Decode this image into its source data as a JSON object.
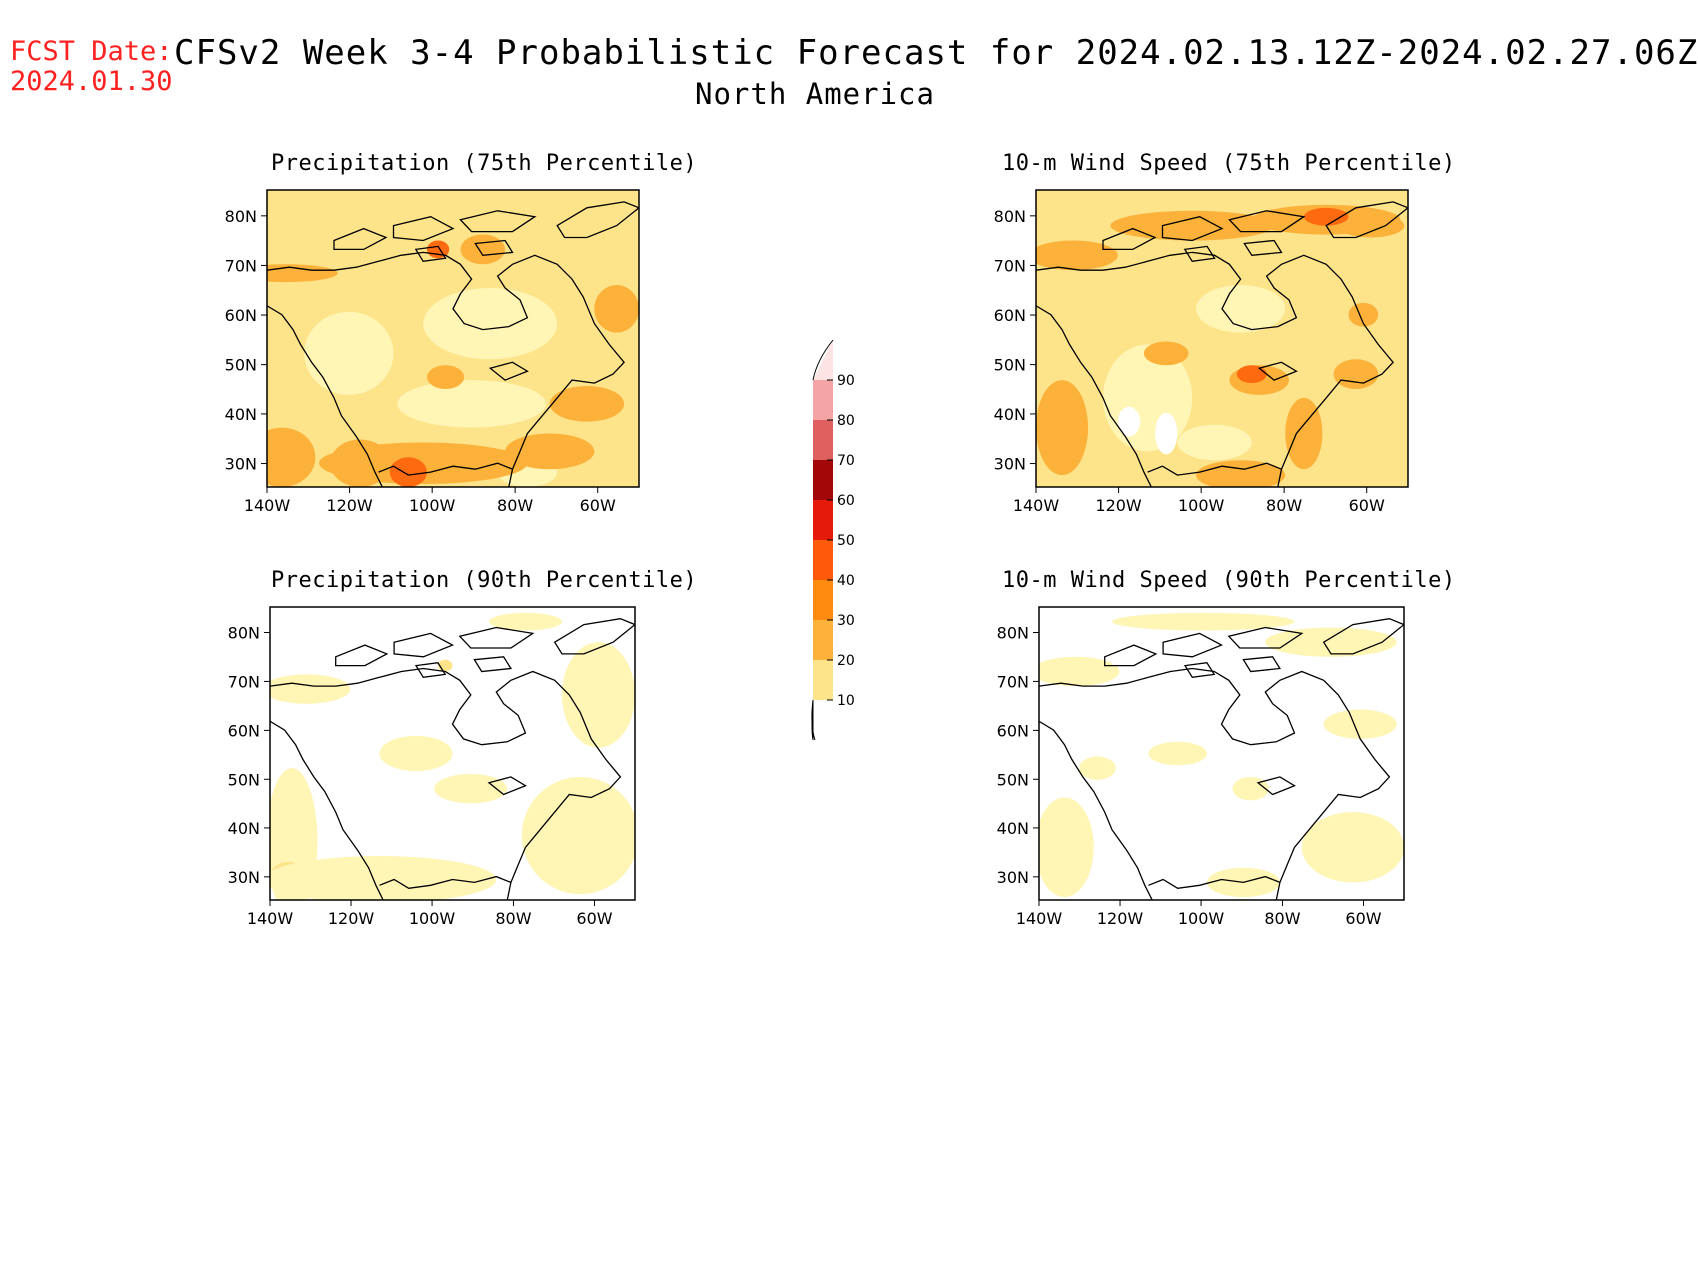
{
  "header": {
    "fcst_label": "FCST Date:",
    "fcst_date": "2024.01.30",
    "title": "CFSv2 Week 3-4 Probabilistic Forecast for 2024.02.13.12Z-2024.02.27.06Z",
    "subtitle": "North America"
  },
  "panels": [
    {
      "id": "precip-75",
      "title": "Precipitation (75th Percentile)",
      "base": "#fde38a",
      "blobs": [
        [
          "#fbb13a",
          0.05,
          0.28,
          0.14,
          0.03
        ],
        [
          "#fbb13a",
          0.58,
          0.2,
          0.06,
          0.05
        ],
        [
          "#fbb13a",
          0.94,
          0.4,
          0.06,
          0.08
        ],
        [
          "#fbb13a",
          0.04,
          0.9,
          0.09,
          0.1
        ],
        [
          "#fbb13a",
          0.25,
          0.92,
          0.08,
          0.08
        ],
        [
          "#fbb13a",
          0.42,
          0.92,
          0.28,
          0.07
        ],
        [
          "#fbb13a",
          0.76,
          0.88,
          0.12,
          0.06
        ],
        [
          "#fbb13a",
          0.86,
          0.72,
          0.1,
          0.06
        ],
        [
          "#fbb13a",
          0.48,
          0.63,
          0.05,
          0.04
        ],
        [
          "#fe6a10",
          0.38,
          0.95,
          0.05,
          0.05
        ],
        [
          "#fe6a10",
          0.46,
          0.2,
          0.03,
          0.03
        ],
        [
          "#fde38a",
          0.62,
          0.05,
          0.1,
          0.03
        ]
      ],
      "pale": [
        [
          "#fff5b4",
          0.6,
          0.45,
          0.18,
          0.12
        ],
        [
          "#fff5b4",
          0.55,
          0.72,
          0.2,
          0.08
        ],
        [
          "#fff5b4",
          0.22,
          0.55,
          0.12,
          0.14
        ],
        [
          "#fff5b4",
          0.7,
          0.95,
          0.08,
          0.05
        ]
      ]
    },
    {
      "id": "wind-75",
      "title": "10-m Wind Speed (75th Percentile)",
      "base": "#fde38a",
      "blobs": [
        [
          "#fbb13a",
          0.1,
          0.22,
          0.12,
          0.05
        ],
        [
          "#fbb13a",
          0.42,
          0.12,
          0.22,
          0.05
        ],
        [
          "#fbb13a",
          0.78,
          0.1,
          0.2,
          0.05
        ],
        [
          "#fbb13a",
          0.9,
          0.12,
          0.09,
          0.04
        ],
        [
          "#fbb13a",
          0.35,
          0.55,
          0.06,
          0.04
        ],
        [
          "#fbb13a",
          0.6,
          0.64,
          0.08,
          0.05
        ],
        [
          "#fbb13a",
          0.86,
          0.62,
          0.06,
          0.05
        ],
        [
          "#fbb13a",
          0.72,
          0.82,
          0.05,
          0.12
        ],
        [
          "#fbb13a",
          0.07,
          0.8,
          0.07,
          0.16
        ],
        [
          "#fbb13a",
          0.55,
          0.96,
          0.12,
          0.05
        ],
        [
          "#fbb13a",
          0.88,
          0.42,
          0.04,
          0.04
        ],
        [
          "#fe6a10",
          0.78,
          0.09,
          0.06,
          0.03
        ],
        [
          "#fe6a10",
          0.58,
          0.62,
          0.04,
          0.03
        ]
      ],
      "pale": [
        [
          "#fff5b4",
          0.3,
          0.7,
          0.12,
          0.18
        ],
        [
          "#ffffff",
          0.25,
          0.78,
          0.03,
          0.05
        ],
        [
          "#ffffff",
          0.35,
          0.82,
          0.03,
          0.07
        ],
        [
          "#fff5b4",
          0.55,
          0.4,
          0.12,
          0.08
        ],
        [
          "#fff5b4",
          0.48,
          0.85,
          0.1,
          0.06
        ]
      ]
    },
    {
      "id": "precip-90",
      "title": "Precipitation (90th Percentile)",
      "base": "#ffffff",
      "blobs": [
        [
          "#fff5b4",
          0.06,
          0.8,
          0.07,
          0.25
        ],
        [
          "#fde38a",
          0.05,
          0.92,
          0.05,
          0.05
        ],
        [
          "#fff5b4",
          0.3,
          0.93,
          0.32,
          0.08
        ],
        [
          "#fff5b4",
          0.85,
          0.78,
          0.16,
          0.2
        ],
        [
          "#fff5b4",
          0.9,
          0.3,
          0.1,
          0.18
        ],
        [
          "#fff5b4",
          0.1,
          0.28,
          0.12,
          0.05
        ],
        [
          "#fff5b4",
          0.4,
          0.5,
          0.1,
          0.06
        ],
        [
          "#fff5b4",
          0.55,
          0.62,
          0.1,
          0.05
        ],
        [
          "#fff5b4",
          0.7,
          0.05,
          0.1,
          0.03
        ],
        [
          "#fde38a",
          0.48,
          0.2,
          0.02,
          0.02
        ]
      ],
      "pale": []
    },
    {
      "id": "wind-90",
      "title": "10-m Wind Speed (90th Percentile)",
      "base": "#ffffff",
      "blobs": [
        [
          "#fff5b4",
          0.1,
          0.22,
          0.12,
          0.05
        ],
        [
          "#fff5b4",
          0.45,
          0.05,
          0.25,
          0.03
        ],
        [
          "#fff5b4",
          0.8,
          0.12,
          0.18,
          0.05
        ],
        [
          "#fff5b4",
          0.07,
          0.82,
          0.08,
          0.17
        ],
        [
          "#fff5b4",
          0.56,
          0.94,
          0.1,
          0.05
        ],
        [
          "#fff5b4",
          0.86,
          0.82,
          0.14,
          0.12
        ],
        [
          "#fff5b4",
          0.58,
          0.62,
          0.05,
          0.04
        ],
        [
          "#fff5b4",
          0.38,
          0.5,
          0.08,
          0.04
        ],
        [
          "#fff5b4",
          0.88,
          0.4,
          0.1,
          0.05
        ],
        [
          "#fff5b4",
          0.16,
          0.55,
          0.05,
          0.04
        ]
      ],
      "pale": []
    }
  ],
  "axes": {
    "lat_labels": [
      "80N",
      "70N",
      "60N",
      "50N",
      "40N",
      "30N"
    ],
    "lon_labels": [
      "140W",
      "120W",
      "100W",
      "80W",
      "60W"
    ]
  },
  "colorbar": {
    "levels": [
      "10",
      "20",
      "30",
      "40",
      "50",
      "60",
      "70",
      "80",
      "90"
    ],
    "colors": [
      "#fff5b4",
      "#fde38a",
      "#fbb13a",
      "#fe8a10",
      "#fe5a0a",
      "#e41a0a",
      "#a30808",
      "#e06060",
      "#f4a4a4",
      "#fde4e4"
    ]
  }
}
